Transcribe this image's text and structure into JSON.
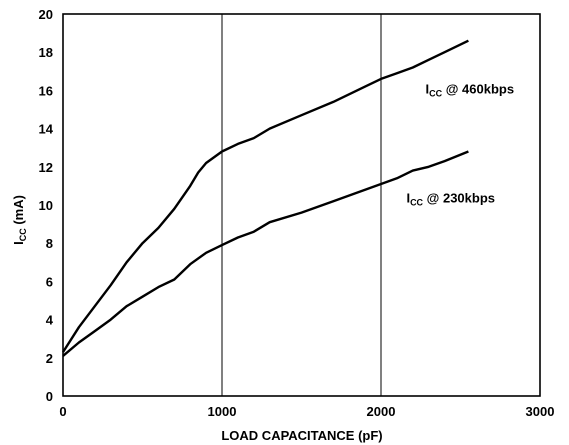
{
  "chart_data": {
    "type": "line",
    "xlabel": "LOAD CAPACITANCE (pF)",
    "ylabel": {
      "main": "I",
      "sub": "CC",
      "rest": " (mA)"
    },
    "xlim": [
      0,
      3000
    ],
    "ylim": [
      0,
      20
    ],
    "x_ticks": [
      0,
      1000,
      2000,
      3000
    ],
    "y_ticks": [
      0,
      2,
      4,
      6,
      8,
      10,
      12,
      14,
      16,
      18,
      20
    ],
    "grid": {
      "vertical": [
        1000,
        2000
      ],
      "horizontal": false
    },
    "series": [
      {
        "label": {
          "main": "I",
          "sub": "CC",
          "rest": " @ 460kbps"
        },
        "label_anchor": {
          "x": 2280,
          "y": 16.1
        },
        "points": [
          [
            0,
            2.3
          ],
          [
            100,
            3.6
          ],
          [
            200,
            4.7
          ],
          [
            300,
            5.8
          ],
          [
            400,
            7.0
          ],
          [
            500,
            8.0
          ],
          [
            600,
            8.8
          ],
          [
            700,
            9.8
          ],
          [
            800,
            11.0
          ],
          [
            850,
            11.7
          ],
          [
            900,
            12.2
          ],
          [
            1000,
            12.8
          ],
          [
            1100,
            13.2
          ],
          [
            1200,
            13.5
          ],
          [
            1300,
            14.0
          ],
          [
            1500,
            14.7
          ],
          [
            1700,
            15.4
          ],
          [
            1900,
            16.2
          ],
          [
            2000,
            16.6
          ],
          [
            2100,
            16.9
          ],
          [
            2200,
            17.2
          ],
          [
            2300,
            17.6
          ],
          [
            2400,
            18.0
          ],
          [
            2550,
            18.6
          ]
        ]
      },
      {
        "label": {
          "main": "I",
          "sub": "CC",
          "rest": " @ 230kbps"
        },
        "label_anchor": {
          "x": 2160,
          "y": 10.4
        },
        "points": [
          [
            0,
            2.1
          ],
          [
            100,
            2.8
          ],
          [
            200,
            3.4
          ],
          [
            300,
            4.0
          ],
          [
            400,
            4.7
          ],
          [
            500,
            5.2
          ],
          [
            600,
            5.7
          ],
          [
            700,
            6.1
          ],
          [
            800,
            6.9
          ],
          [
            900,
            7.5
          ],
          [
            1000,
            7.9
          ],
          [
            1100,
            8.3
          ],
          [
            1200,
            8.6
          ],
          [
            1300,
            9.1
          ],
          [
            1500,
            9.6
          ],
          [
            1700,
            10.2
          ],
          [
            1900,
            10.8
          ],
          [
            2000,
            11.1
          ],
          [
            2100,
            11.4
          ],
          [
            2200,
            11.8
          ],
          [
            2300,
            12.0
          ],
          [
            2400,
            12.3
          ],
          [
            2550,
            12.8
          ]
        ]
      }
    ]
  }
}
